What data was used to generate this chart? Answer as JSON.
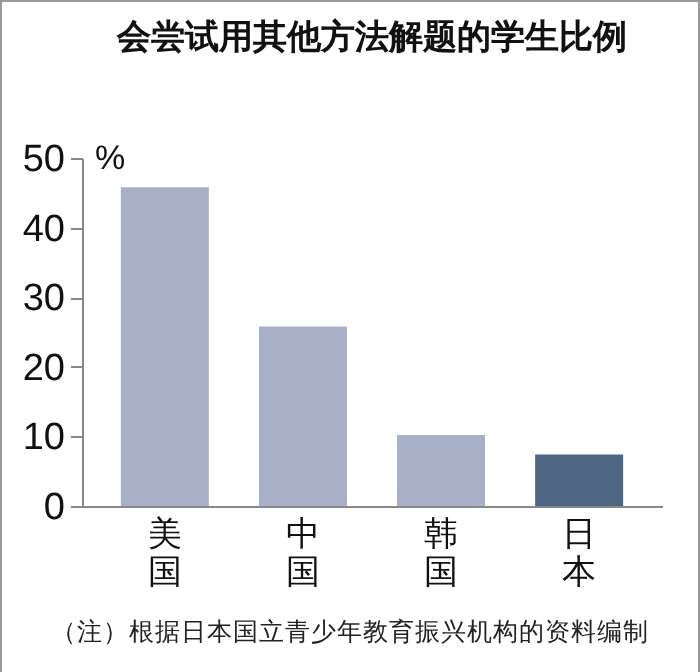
{
  "chart_data": {
    "type": "bar",
    "title": "会尝试用其他方法解题的学生比例",
    "ylabel": "%",
    "categories": [
      "美国",
      "中国",
      "韩国",
      "日本"
    ],
    "values": [
      45.8,
      25.8,
      10.2,
      7.4
    ],
    "colors": [
      "#a7b0c6",
      "#a7b0c6",
      "#a7b0c6",
      "#4e6584"
    ],
    "ylim": [
      0,
      50
    ],
    "yticks": [
      0,
      10,
      20,
      30,
      40,
      50
    ],
    "grid": false,
    "annotations": [
      "（注）根据日本国立青少年教育振兴机构的资料编制"
    ]
  }
}
